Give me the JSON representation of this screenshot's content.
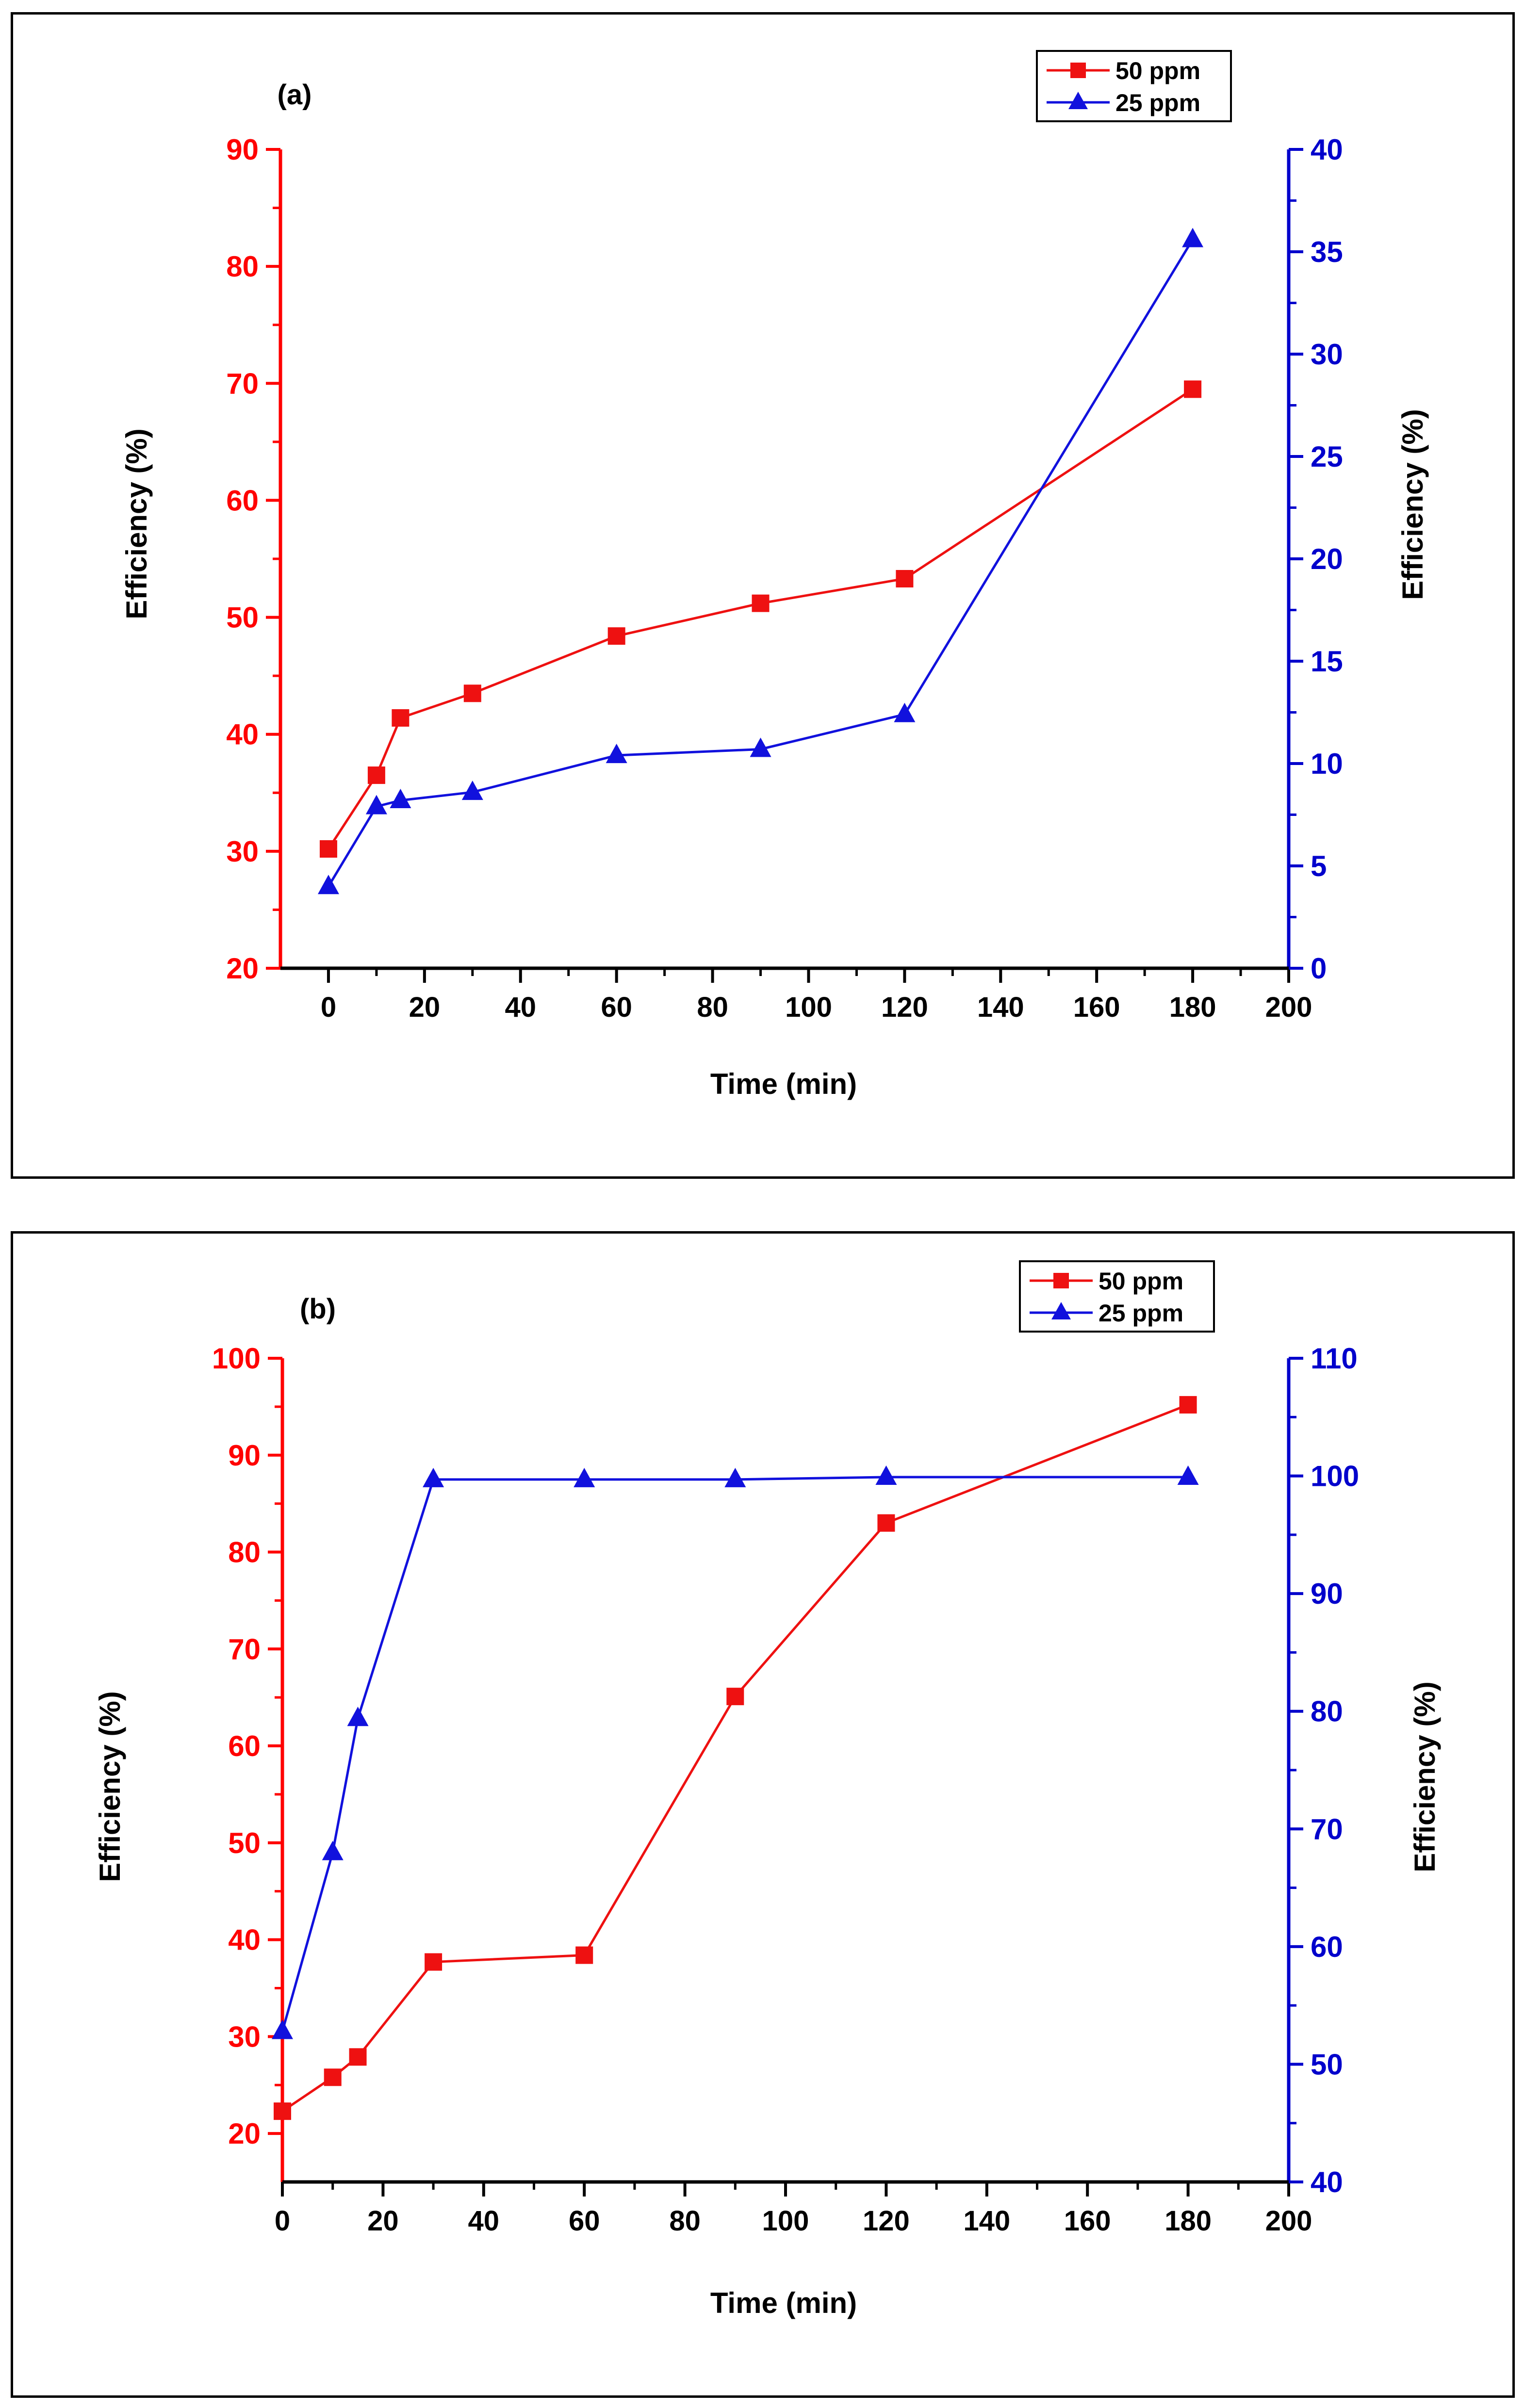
{
  "colors": {
    "left_axis": "#ff0000",
    "right_axis": "#0000cc",
    "series_50ppm": "#ee1111",
    "series_25ppm": "#1111dd",
    "frame": "#000000"
  },
  "chart_data": [
    {
      "panel_label": "(a)",
      "type": "line",
      "xlabel": "Time (min)",
      "ylabel_left": "Efficiency (%)",
      "ylabel_right": "Efficiency (%)",
      "xlim": [
        -10,
        200
      ],
      "ylim_left": [
        20,
        90
      ],
      "ylim_right": [
        0,
        40
      ],
      "x_ticks": [
        0,
        20,
        40,
        60,
        80,
        100,
        120,
        140,
        160,
        180,
        200
      ],
      "y_ticks_left": [
        20,
        30,
        40,
        50,
        60,
        70,
        80,
        90
      ],
      "y_ticks_right": [
        0,
        5,
        10,
        15,
        20,
        25,
        30,
        35,
        40
      ],
      "legend_position": "top-right",
      "grid": false,
      "series": [
        {
          "name": "50 ppm",
          "axis": "left",
          "marker": "square",
          "color": "#ee1111",
          "x": [
            0,
            10,
            15,
            30,
            60,
            90,
            120,
            180
          ],
          "y": [
            30.2,
            36.5,
            41.4,
            43.5,
            48.4,
            51.2,
            53.3,
            69.5
          ]
        },
        {
          "name": "25 ppm",
          "axis": "right",
          "marker": "triangle",
          "color": "#1111dd",
          "x": [
            0,
            10,
            15,
            30,
            60,
            90,
            120,
            180
          ],
          "y": [
            4.0,
            7.9,
            8.2,
            8.6,
            10.4,
            10.7,
            12.4,
            35.6
          ]
        }
      ]
    },
    {
      "panel_label": "(b)",
      "type": "line",
      "xlabel": "Time (min)",
      "ylabel_left": "Efficiency (%)",
      "ylabel_right": "Efficiency (%)",
      "xlim": [
        0,
        200
      ],
      "ylim_left": [
        15,
        100
      ],
      "ylim_right": [
        40,
        110
      ],
      "x_ticks": [
        0,
        20,
        40,
        60,
        80,
        100,
        120,
        140,
        160,
        180,
        200
      ],
      "y_ticks_left": [
        20,
        30,
        40,
        50,
        60,
        70,
        80,
        90,
        100
      ],
      "y_ticks_right": [
        40,
        50,
        60,
        70,
        80,
        90,
        100,
        110
      ],
      "legend_position": "top-right",
      "grid": false,
      "series": [
        {
          "name": "50 ppm",
          "axis": "left",
          "marker": "square",
          "color": "#ee1111",
          "x": [
            0,
            10,
            15,
            30,
            60,
            90,
            120,
            180
          ],
          "y": [
            22.3,
            25.8,
            27.9,
            37.7,
            38.4,
            65.1,
            83.0,
            95.2
          ]
        },
        {
          "name": "25 ppm",
          "axis": "right",
          "marker": "triangle",
          "color": "#1111dd",
          "x": [
            0,
            10,
            15,
            30,
            60,
            90,
            120,
            180
          ],
          "y": [
            52.8,
            68.0,
            79.4,
            99.7,
            99.7,
            99.7,
            99.9,
            99.9
          ]
        }
      ]
    }
  ]
}
